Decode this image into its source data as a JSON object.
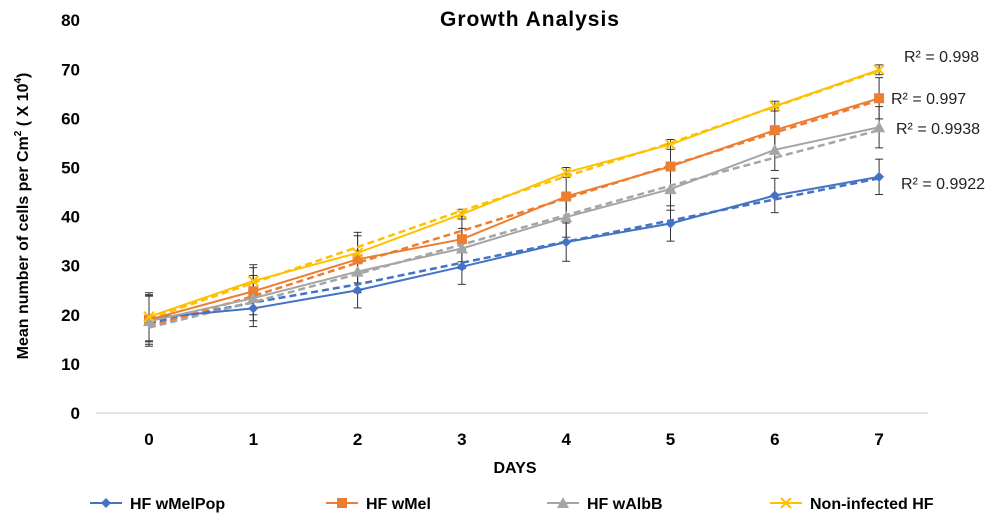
{
  "chart_data": {
    "type": "line",
    "title": "Growth Analysis",
    "xlabel": "DAYS",
    "ylabel": "Mean number of cells per Cm² ( X 10⁴)",
    "ylabel_parts": {
      "main": "Mean number of cells per Cm",
      "sup1": "2",
      "mid": " ( X 10",
      "sup2": "4",
      "end": ")"
    },
    "x": [
      0,
      1,
      2,
      3,
      4,
      5,
      6,
      7
    ],
    "x_tick_labels": [
      "0",
      "1",
      "2",
      "3",
      "4",
      "5",
      "6",
      "7"
    ],
    "ylim": [
      0,
      80
    ],
    "y_ticks": [
      0,
      10,
      20,
      30,
      40,
      50,
      60,
      70,
      80
    ],
    "y_tick_labels": [
      "0",
      "10",
      "20",
      "30",
      "40",
      "50",
      "60",
      "70",
      "80"
    ],
    "grid": false,
    "legend_position": "bottom",
    "series": [
      {
        "name": "HF  wMelPop",
        "color": "#4472c4",
        "marker": "diamond",
        "values": [
          19.3,
          21.3,
          25.0,
          29.8,
          34.8,
          38.6,
          44.3,
          48.1
        ],
        "errors": [
          4.8,
          3.7,
          3.6,
          3.6,
          3.9,
          3.6,
          3.5,
          3.6
        ],
        "trendline": [
          18.3,
          22.5,
          26.2,
          30.6,
          34.9,
          39.2,
          43.5,
          47.8
        ],
        "r2": "R² = 0.9922"
      },
      {
        "name": "HF wMel",
        "color": "#ed7d31",
        "marker": "square",
        "values": [
          19.0,
          24.8,
          31.3,
          35.4,
          44.1,
          50.2,
          57.6,
          64.1
        ],
        "errors": [
          5.0,
          4.8,
          4.8,
          4.6,
          4.6,
          4.6,
          4.6,
          4.2
        ],
        "trendline": [
          17.6,
          23.8,
          30.6,
          37.1,
          43.7,
          50.4,
          57.1,
          63.7
        ],
        "r2": "R² = 0.997"
      },
      {
        "name": "HF wAlbB",
        "color": "#a5a5a5",
        "marker": "triangle",
        "values": [
          18.7,
          23.4,
          28.8,
          33.5,
          39.9,
          45.6,
          53.6,
          58.2
        ],
        "errors": [
          5.1,
          4.6,
          4.3,
          4.1,
          4.1,
          4.3,
          4.2,
          4.2
        ],
        "trendline": [
          17.4,
          22.6,
          28.3,
          34.3,
          40.3,
          46.3,
          52.0,
          57.6
        ],
        "r2": "R² = 0.9938"
      },
      {
        "name": "Non-infected HF",
        "color": "#ffc000",
        "marker": "x",
        "values": [
          19.6,
          26.9,
          32.6,
          40.5,
          49.0,
          54.7,
          62.5,
          69.9
        ],
        "errors": [
          4.9,
          3.3,
          4.2,
          1.0,
          1.0,
          1.0,
          1.0,
          1.0
        ],
        "trendline": [
          19.2,
          26.5,
          33.8,
          41.2,
          48.2,
          55.0,
          62.4,
          69.7
        ],
        "r2": "R² = 0.998"
      }
    ]
  }
}
